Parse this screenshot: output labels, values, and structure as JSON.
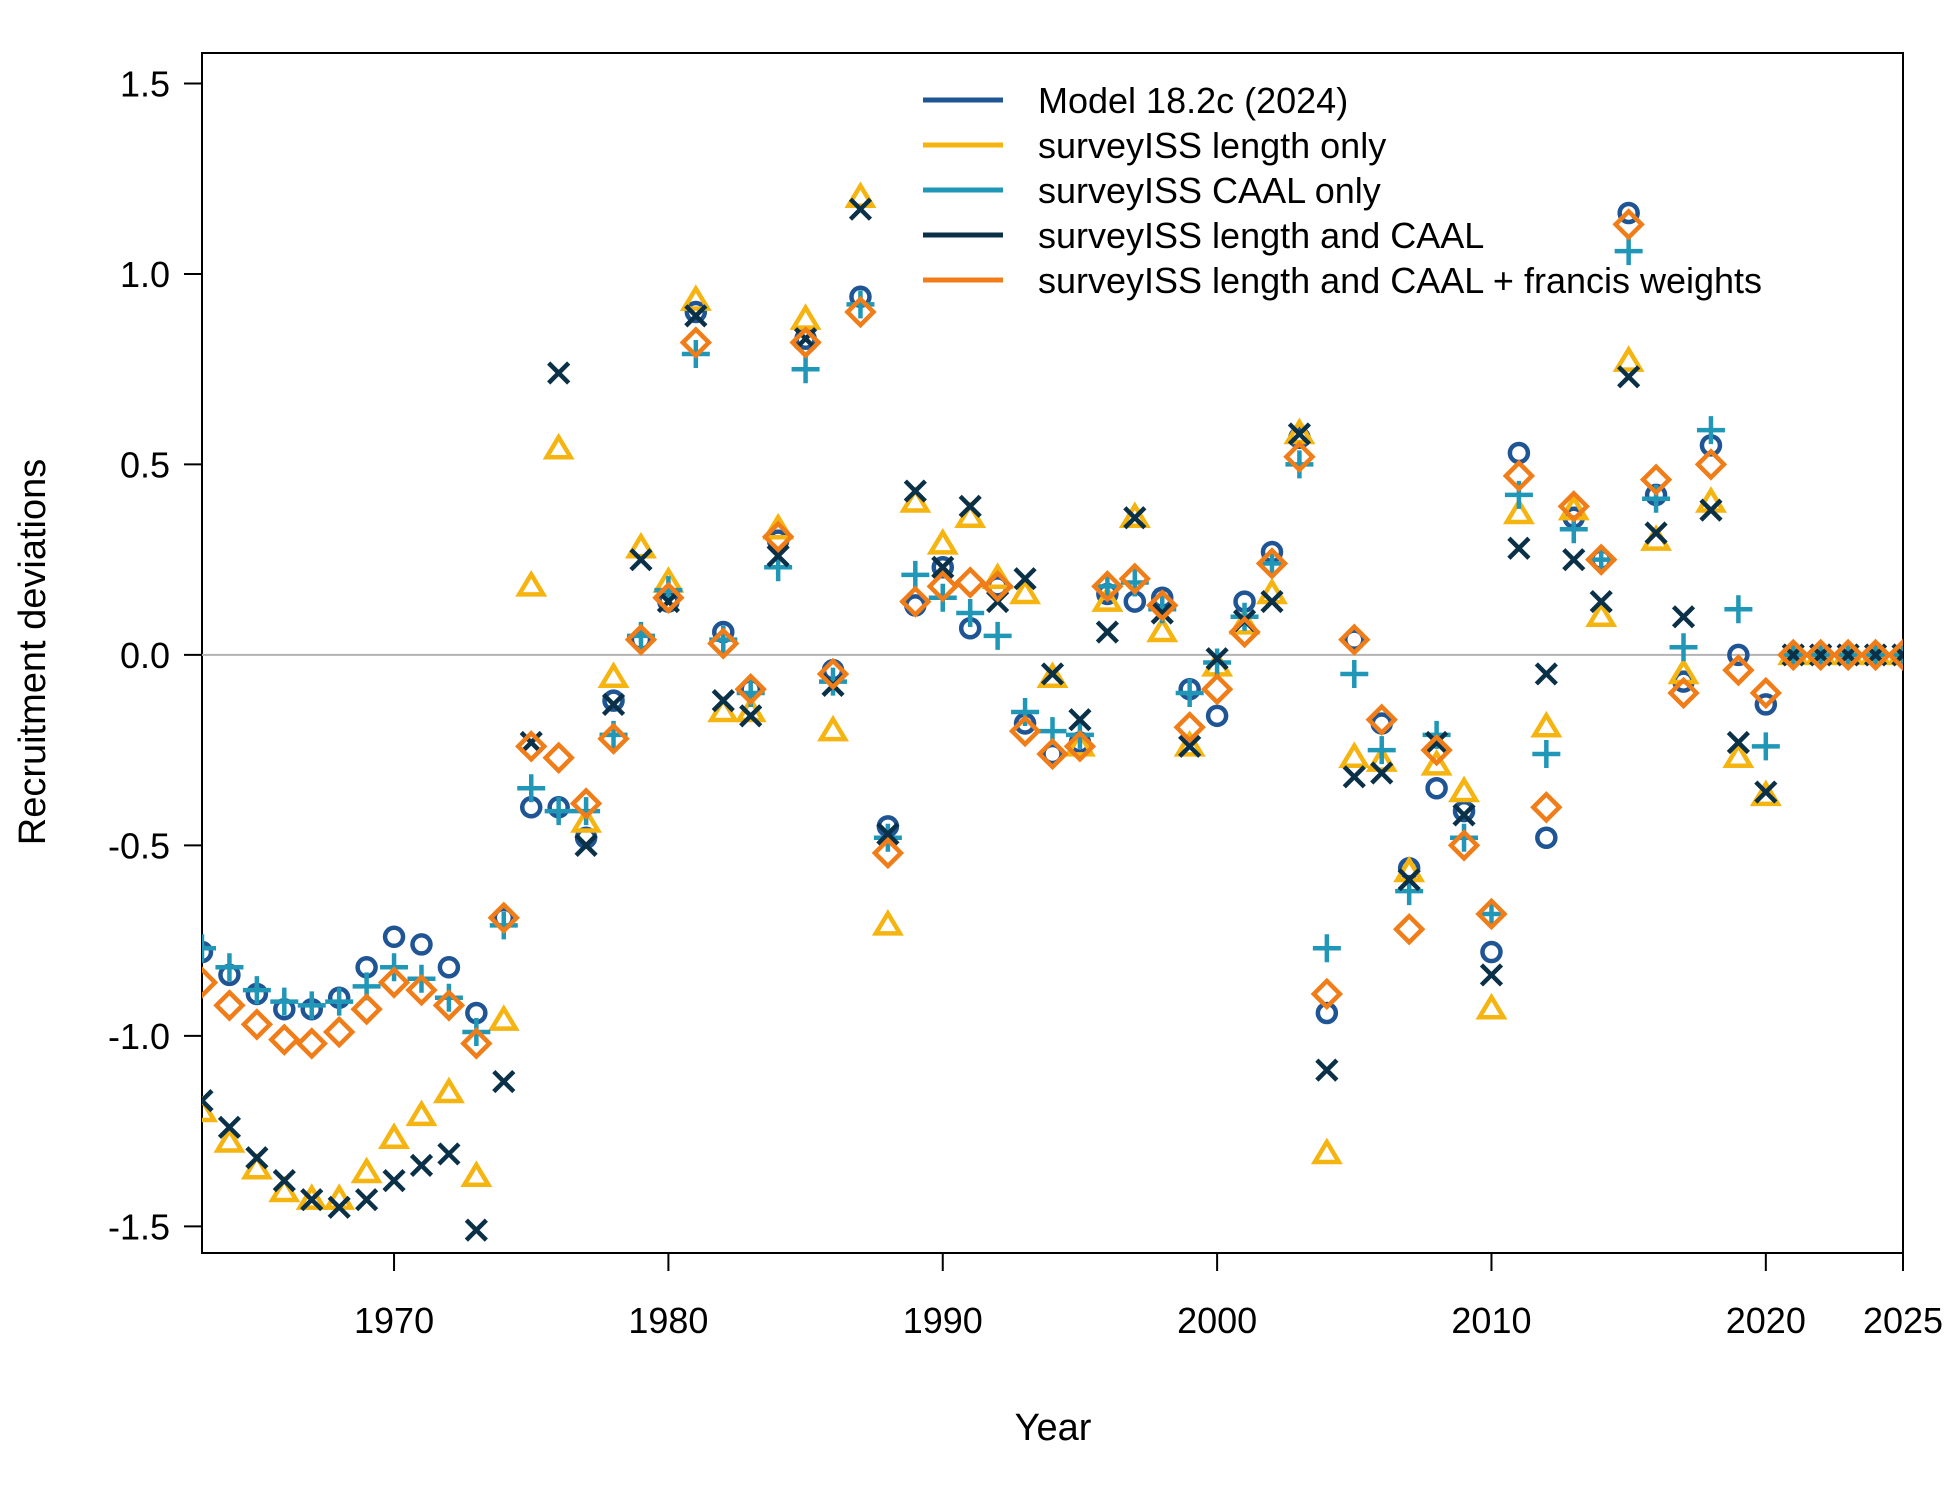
{
  "chart_data": {
    "type": "scatter",
    "title": "",
    "xlabel": "Year",
    "ylabel": "Recruitment deviations",
    "xlim": [
      1963,
      2025
    ],
    "ylim": [
      -1.57,
      1.58
    ],
    "x_ticks": [
      1970,
      1980,
      1990,
      2000,
      2010,
      2020,
      2025
    ],
    "y_ticks": [
      -1.5,
      -1.0,
      -0.5,
      0.0,
      0.5,
      1.0,
      1.5
    ],
    "x_tick_labels": [
      "1970",
      "1980",
      "1990",
      "2000",
      "2010",
      "2020",
      "2025"
    ],
    "y_tick_labels": [
      "-1.5",
      "-1.0",
      "-0.5",
      "0.0",
      "0.5",
      "1.0",
      "1.5"
    ],
    "reference_line": 0,
    "grid": false,
    "legend_position": "top-right",
    "x": [
      1963,
      1964,
      1965,
      1966,
      1967,
      1968,
      1969,
      1970,
      1971,
      1972,
      1973,
      1974,
      1975,
      1976,
      1977,
      1978,
      1979,
      1980,
      1981,
      1982,
      1983,
      1984,
      1985,
      1986,
      1987,
      1988,
      1989,
      1990,
      1991,
      1992,
      1993,
      1994,
      1995,
      1996,
      1997,
      1998,
      1999,
      2000,
      2001,
      2002,
      2003,
      2004,
      2005,
      2006,
      2007,
      2008,
      2009,
      2010,
      2011,
      2012,
      2013,
      2014,
      2015,
      2016,
      2017,
      2018,
      2019,
      2020,
      2021,
      2022,
      2023,
      2024,
      2025
    ],
    "series": [
      {
        "name": "Model 18.2c (2024)",
        "color": "#1f5594",
        "marker": "circle",
        "values": [
          -0.78,
          -0.84,
          -0.89,
          -0.93,
          -0.93,
          -0.9,
          -0.82,
          -0.74,
          -0.76,
          -0.82,
          -0.94,
          -0.69,
          -0.4,
          -0.4,
          -0.48,
          -0.12,
          0.04,
          0.14,
          0.9,
          0.06,
          -0.09,
          0.3,
          0.83,
          -0.04,
          0.94,
          -0.45,
          0.13,
          0.23,
          0.07,
          0.18,
          -0.18,
          -0.26,
          -0.23,
          0.16,
          0.14,
          0.15,
          -0.09,
          -0.16,
          0.14,
          0.27,
          0.57,
          -0.94,
          0.04,
          -0.18,
          -0.56,
          -0.35,
          -0.41,
          -0.78,
          0.53,
          -0.48,
          0.36,
          0.25,
          1.16,
          0.42,
          -0.07,
          0.55,
          0.0,
          -0.13,
          0.0,
          0.0,
          0.0,
          0.0,
          0.0
        ]
      },
      {
        "name": "surveyISS length only",
        "color": "#f5b40f",
        "marker": "triangle",
        "values": [
          -1.2,
          -1.28,
          -1.35,
          -1.41,
          -1.43,
          -1.43,
          -1.36,
          -1.27,
          -1.21,
          -1.15,
          -1.37,
          -0.96,
          0.18,
          0.54,
          -0.44,
          -0.06,
          0.28,
          0.19,
          0.93,
          -0.15,
          -0.15,
          0.33,
          0.88,
          -0.2,
          1.2,
          -0.71,
          0.4,
          0.29,
          0.36,
          0.2,
          0.16,
          -0.06,
          -0.24,
          0.14,
          0.36,
          0.06,
          -0.24,
          -0.03,
          0.08,
          0.16,
          0.58,
          -1.31,
          -0.27,
          -0.28,
          -0.57,
          -0.29,
          -0.36,
          -0.93,
          0.37,
          -0.19,
          0.38,
          0.1,
          0.77,
          0.3,
          -0.05,
          0.4,
          -0.27,
          -0.37,
          0.0,
          0.0,
          0.0,
          0.0,
          0.0
        ]
      },
      {
        "name": "surveyISS CAAL only",
        "color": "#2197b7",
        "marker": "plus",
        "values": [
          -0.77,
          -0.82,
          -0.88,
          -0.91,
          -0.92,
          -0.91,
          -0.87,
          -0.82,
          -0.85,
          -0.9,
          -0.99,
          -0.71,
          -0.35,
          -0.41,
          -0.41,
          -0.21,
          0.05,
          0.17,
          0.79,
          0.04,
          -0.1,
          0.23,
          0.75,
          -0.07,
          0.92,
          -0.48,
          0.21,
          0.15,
          0.11,
          0.05,
          -0.15,
          -0.2,
          -0.21,
          0.18,
          0.19,
          0.12,
          -0.1,
          -0.02,
          0.1,
          0.24,
          0.5,
          -0.77,
          -0.05,
          -0.25,
          -0.62,
          -0.21,
          -0.48,
          -0.68,
          0.42,
          -0.26,
          0.33,
          0.25,
          1.06,
          0.41,
          0.02,
          0.59,
          0.12,
          -0.24,
          0.0,
          0.0,
          0.0,
          0.0,
          0.0
        ]
      },
      {
        "name": "surveyISS length and CAAL",
        "color": "#0b3148",
        "marker": "cross",
        "values": [
          -1.17,
          -1.24,
          -1.32,
          -1.38,
          -1.43,
          -1.45,
          -1.43,
          -1.38,
          -1.34,
          -1.31,
          -1.51,
          -1.12,
          -0.23,
          0.74,
          -0.5,
          -0.13,
          0.25,
          0.14,
          0.89,
          -0.12,
          -0.16,
          0.26,
          0.83,
          -0.08,
          1.17,
          -0.47,
          0.43,
          0.23,
          0.39,
          0.14,
          0.2,
          -0.05,
          -0.17,
          0.06,
          0.36,
          0.11,
          -0.24,
          -0.01,
          0.09,
          0.14,
          0.58,
          -1.09,
          -0.32,
          -0.31,
          -0.59,
          -0.23,
          -0.42,
          -0.84,
          0.28,
          -0.05,
          0.25,
          0.14,
          0.73,
          0.32,
          0.1,
          0.38,
          -0.23,
          -0.36,
          0.0,
          0.0,
          0.0,
          0.0,
          0.0
        ]
      },
      {
        "name": "surveyISS length and CAAL + francis weights",
        "color": "#f07d18",
        "marker": "diamond",
        "values": [
          -0.86,
          -0.92,
          -0.97,
          -1.01,
          -1.02,
          -0.99,
          -0.93,
          -0.86,
          -0.88,
          -0.92,
          -1.02,
          -0.69,
          -0.24,
          -0.27,
          -0.39,
          -0.22,
          0.04,
          0.15,
          0.82,
          0.03,
          -0.09,
          0.31,
          0.82,
          -0.05,
          0.9,
          -0.52,
          0.14,
          0.18,
          0.19,
          0.18,
          -0.2,
          -0.26,
          -0.24,
          0.18,
          0.2,
          0.13,
          -0.19,
          -0.09,
          0.06,
          0.24,
          0.52,
          -0.89,
          0.04,
          -0.17,
          -0.72,
          -0.25,
          -0.5,
          -0.68,
          0.47,
          -0.4,
          0.39,
          0.25,
          1.13,
          0.46,
          -0.1,
          0.5,
          -0.04,
          -0.1,
          0.0,
          0.0,
          0.0,
          0.0,
          0.0
        ]
      }
    ]
  }
}
